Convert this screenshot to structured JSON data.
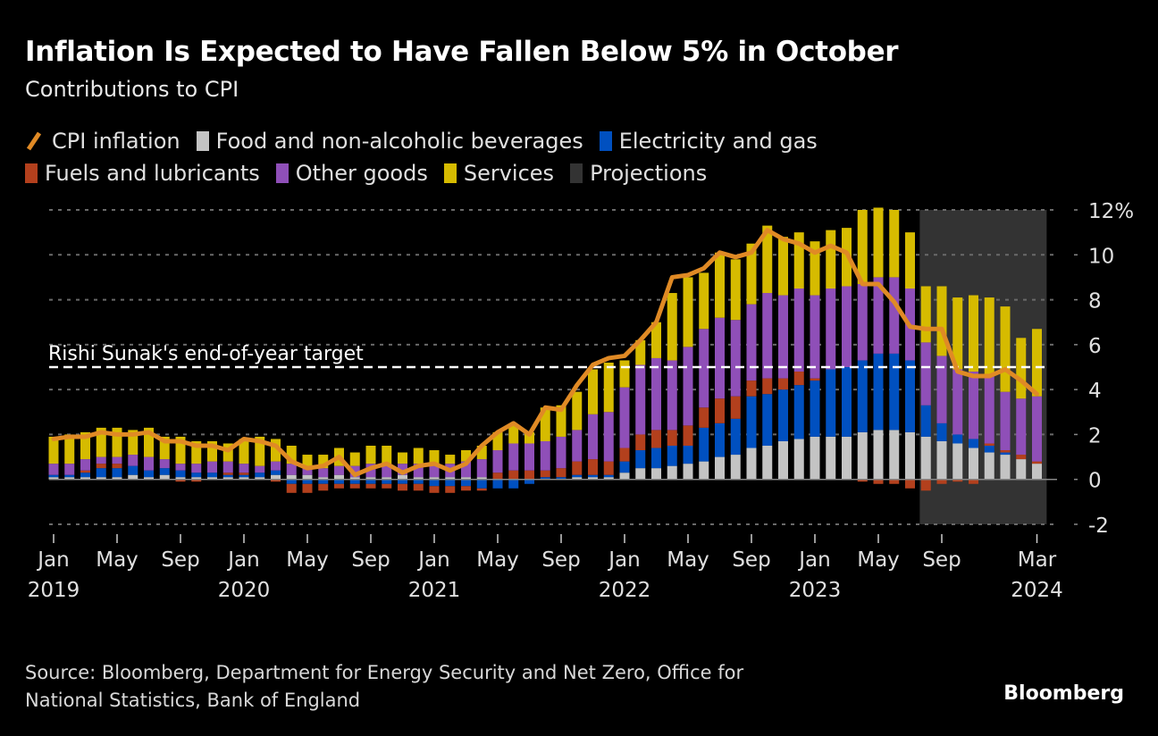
{
  "header": {
    "title": "Inflation Is Expected to Have Fallen Below 5% in October",
    "subtitle": "Contributions to CPI"
  },
  "legend": [
    {
      "key": "cpi",
      "label": "CPI inflation",
      "type": "line",
      "color": "#e08a25"
    },
    {
      "key": "food",
      "label": "Food and non-alcoholic beverages",
      "type": "bar",
      "color": "#c4c4c4"
    },
    {
      "key": "elec",
      "label": "Electricity and gas",
      "type": "bar",
      "color": "#0050c0"
    },
    {
      "key": "fuel",
      "label": "Fuels and lubricants",
      "type": "bar",
      "color": "#b3401d"
    },
    {
      "key": "other",
      "label": "Other goods",
      "type": "bar",
      "color": "#8f4fb8"
    },
    {
      "key": "services",
      "label": "Services",
      "type": "bar",
      "color": "#d6bb00"
    },
    {
      "key": "proj",
      "label": "Projections",
      "type": "area",
      "color": "#333333"
    }
  ],
  "source": {
    "line1": "Source: Bloomberg, Department for Energy Security and Net Zero, Office for",
    "line2": "National Statistics, Bank of England"
  },
  "brand": "Bloomberg",
  "chart_data": {
    "type": "bar",
    "subtype": "stacked bar with line overlay",
    "title": "Inflation Is Expected to Have Fallen Below 5% in October",
    "subtitle": "Contributions to CPI",
    "xlabel": "",
    "ylabel": "",
    "ylim": [
      -2,
      12
    ],
    "yticks": [
      -2,
      0,
      2,
      4,
      6,
      8,
      10,
      12
    ],
    "ytick_labels": [
      "-2",
      "0",
      "2",
      "4",
      "6",
      "8",
      "10",
      "12%"
    ],
    "y_axis_side": "right",
    "grid": true,
    "legend_position": "top-left",
    "xticks": [
      {
        "index": 0,
        "month": "Jan",
        "year": "2019"
      },
      {
        "index": 4,
        "month": "May",
        "year": ""
      },
      {
        "index": 8,
        "month": "Sep",
        "year": ""
      },
      {
        "index": 12,
        "month": "Jan",
        "year": "2020"
      },
      {
        "index": 16,
        "month": "May",
        "year": ""
      },
      {
        "index": 20,
        "month": "Sep",
        "year": ""
      },
      {
        "index": 24,
        "month": "Jan",
        "year": "2021"
      },
      {
        "index": 28,
        "month": "May",
        "year": ""
      },
      {
        "index": 32,
        "month": "Sep",
        "year": ""
      },
      {
        "index": 36,
        "month": "Jan",
        "year": "2022"
      },
      {
        "index": 40,
        "month": "May",
        "year": ""
      },
      {
        "index": 44,
        "month": "Sep",
        "year": ""
      },
      {
        "index": 48,
        "month": "Jan",
        "year": "2023"
      },
      {
        "index": 52,
        "month": "May",
        "year": ""
      },
      {
        "index": 56,
        "month": "Sep",
        "year": ""
      },
      {
        "index": 62,
        "month": "Mar",
        "year": "2024"
      }
    ],
    "annotation": {
      "label": "Rishi Sunak's end-of-year target",
      "value": 5
    },
    "projection_start_index": 55,
    "categories": [
      "Jan 2019",
      "Feb 2019",
      "Mar 2019",
      "Apr 2019",
      "May 2019",
      "Jun 2019",
      "Jul 2019",
      "Aug 2019",
      "Sep 2019",
      "Oct 2019",
      "Nov 2019",
      "Dec 2019",
      "Jan 2020",
      "Feb 2020",
      "Mar 2020",
      "Apr 2020",
      "May 2020",
      "Jun 2020",
      "Jul 2020",
      "Aug 2020",
      "Sep 2020",
      "Oct 2020",
      "Nov 2020",
      "Dec 2020",
      "Jan 2021",
      "Feb 2021",
      "Mar 2021",
      "Apr 2021",
      "May 2021",
      "Jun 2021",
      "Jul 2021",
      "Aug 2021",
      "Sep 2021",
      "Oct 2021",
      "Nov 2021",
      "Dec 2021",
      "Jan 2022",
      "Feb 2022",
      "Mar 2022",
      "Apr 2022",
      "May 2022",
      "Jun 2022",
      "Jul 2022",
      "Aug 2022",
      "Sep 2022",
      "Oct 2022",
      "Nov 2022",
      "Dec 2022",
      "Jan 2023",
      "Feb 2023",
      "Mar 2023",
      "Apr 2023",
      "May 2023",
      "Jun 2023",
      "Jul 2023",
      "Aug 2023",
      "Sep 2023",
      "Oct 2023",
      "Nov 2023",
      "Dec 2023",
      "Jan 2024",
      "Feb 2024",
      "Mar 2024"
    ],
    "series": [
      {
        "name": "Food and non-alcoholic beverages",
        "key": "food",
        "type": "bar",
        "values": [
          0.1,
          0.1,
          0.1,
          0.1,
          0.1,
          0.2,
          0.1,
          0.2,
          0.1,
          0.1,
          0.1,
          0.1,
          0.1,
          0.1,
          0.2,
          0.2,
          0.2,
          0.1,
          0.2,
          0.1,
          0.1,
          0.1,
          0.2,
          0.1,
          0.1,
          0.1,
          0.1,
          0.1,
          0.0,
          0.0,
          0.0,
          0.0,
          0.0,
          0.1,
          0.1,
          0.1,
          0.3,
          0.5,
          0.5,
          0.6,
          0.7,
          0.8,
          1.0,
          1.1,
          1.4,
          1.5,
          1.7,
          1.8,
          1.9,
          1.9,
          1.9,
          2.1,
          2.2,
          2.2,
          2.1,
          1.9,
          1.7,
          1.6,
          1.4,
          1.2,
          1.1,
          0.9,
          0.7
        ]
      },
      {
        "name": "Electricity and gas",
        "key": "elec",
        "type": "bar",
        "values": [
          0.1,
          0.1,
          0.2,
          0.4,
          0.4,
          0.4,
          0.3,
          0.3,
          0.3,
          0.2,
          0.2,
          0.1,
          0.1,
          0.2,
          0.2,
          -0.2,
          -0.2,
          -0.2,
          -0.2,
          -0.2,
          -0.2,
          -0.2,
          -0.2,
          -0.2,
          -0.3,
          -0.3,
          -0.3,
          -0.4,
          -0.4,
          -0.4,
          -0.2,
          0.1,
          0.1,
          0.1,
          0.1,
          0.1,
          0.5,
          0.8,
          0.9,
          0.9,
          0.8,
          1.5,
          1.5,
          1.6,
          2.3,
          2.3,
          2.3,
          2.4,
          2.5,
          3.0,
          3.1,
          3.2,
          3.4,
          3.4,
          3.2,
          1.4,
          0.8,
          0.4,
          0.4,
          0.3,
          0.1,
          0.0,
          0.0
        ]
      },
      {
        "name": "Fuels and lubricants",
        "key": "fuel",
        "type": "bar",
        "values": [
          0.0,
          0.0,
          0.1,
          0.2,
          0.2,
          0.0,
          0.0,
          0.0,
          -0.1,
          -0.1,
          0.0,
          0.1,
          0.1,
          0.0,
          -0.1,
          -0.4,
          -0.4,
          -0.3,
          -0.2,
          -0.2,
          -0.2,
          -0.2,
          -0.3,
          -0.3,
          -0.3,
          -0.3,
          -0.2,
          -0.1,
          0.3,
          0.4,
          0.4,
          0.3,
          0.4,
          0.6,
          0.7,
          0.6,
          0.6,
          0.7,
          0.8,
          0.7,
          0.9,
          0.9,
          1.1,
          1.0,
          0.7,
          0.7,
          0.5,
          0.6,
          0.1,
          0.0,
          0.0,
          -0.1,
          -0.2,
          -0.2,
          -0.4,
          -0.5,
          -0.2,
          -0.1,
          -0.2,
          0.1,
          0.1,
          0.2,
          0.1
        ]
      },
      {
        "name": "Other goods",
        "key": "other",
        "type": "bar",
        "values": [
          0.5,
          0.5,
          0.5,
          0.3,
          0.3,
          0.5,
          0.6,
          0.4,
          0.3,
          0.4,
          0.5,
          0.5,
          0.4,
          0.3,
          0.4,
          0.5,
          0.4,
          0.4,
          0.4,
          0.5,
          0.6,
          0.6,
          0.5,
          0.6,
          0.6,
          0.6,
          0.7,
          0.8,
          1.0,
          1.2,
          1.2,
          1.3,
          1.4,
          1.4,
          2.0,
          2.2,
          2.7,
          3.1,
          3.2,
          3.1,
          3.5,
          3.5,
          3.6,
          3.4,
          3.4,
          3.8,
          3.7,
          3.7,
          3.7,
          3.6,
          3.6,
          3.4,
          3.4,
          3.4,
          3.2,
          2.8,
          3.0,
          2.9,
          3.0,
          3.0,
          2.6,
          2.5,
          2.9
        ]
      },
      {
        "name": "Services",
        "key": "services",
        "type": "bar",
        "values": [
          1.2,
          1.3,
          1.2,
          1.3,
          1.3,
          1.1,
          1.3,
          1.0,
          1.2,
          1.0,
          0.9,
          0.8,
          1.1,
          1.3,
          1.0,
          0.8,
          0.5,
          0.6,
          0.8,
          0.6,
          0.8,
          0.8,
          0.5,
          0.7,
          0.6,
          0.4,
          0.5,
          0.6,
          0.8,
          0.8,
          0.5,
          1.5,
          1.4,
          1.7,
          2.0,
          2.2,
          1.2,
          1.1,
          1.6,
          3.0,
          3.1,
          2.5,
          2.9,
          2.7,
          2.7,
          3.0,
          2.6,
          2.5,
          2.4,
          2.6,
          2.6,
          3.3,
          3.1,
          3.0,
          2.5,
          2.5,
          3.1,
          3.2,
          3.4,
          3.5,
          3.8,
          2.7,
          3.0
        ]
      },
      {
        "name": "CPI inflation",
        "key": "cpi",
        "type": "line",
        "values": [
          1.8,
          1.9,
          1.9,
          2.1,
          2.0,
          2.0,
          2.1,
          1.7,
          1.7,
          1.5,
          1.5,
          1.3,
          1.8,
          1.7,
          1.5,
          0.8,
          0.5,
          0.6,
          1.0,
          0.2,
          0.5,
          0.7,
          0.3,
          0.6,
          0.7,
          0.4,
          0.7,
          1.5,
          2.1,
          2.5,
          2.0,
          3.2,
          3.1,
          4.2,
          5.1,
          5.4,
          5.5,
          6.2,
          7.0,
          9.0,
          9.1,
          9.4,
          10.1,
          9.9,
          10.1,
          11.1,
          10.7,
          10.5,
          10.1,
          10.4,
          10.1,
          8.7,
          8.7,
          7.9,
          6.8,
          6.7,
          6.7,
          4.8,
          4.6,
          4.6,
          4.9,
          4.4,
          3.8
        ]
      }
    ]
  }
}
